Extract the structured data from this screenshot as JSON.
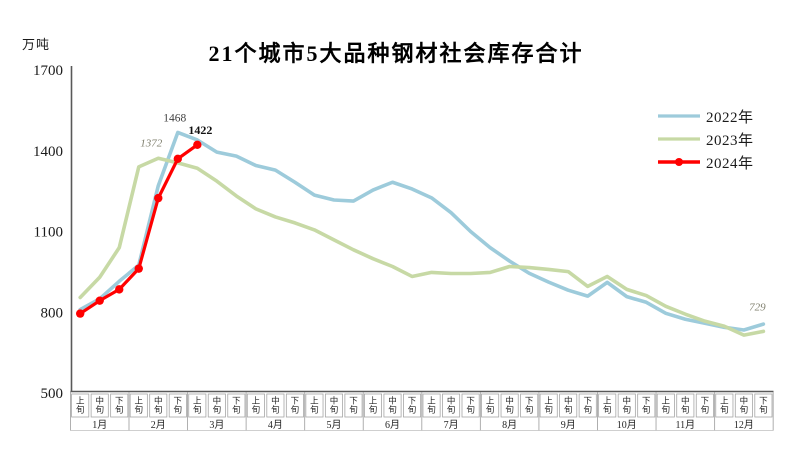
{
  "chart": {
    "title": "21个城市5大品种钢材社会库存合计",
    "unit": "万吨"
  },
  "chart_data": {
    "type": "line",
    "title": "21个城市5大品种钢材社会库存合计",
    "ylabel": "万吨",
    "ylim": [
      500,
      1700
    ],
    "yticks": [
      1700,
      1400,
      1100,
      800,
      500
    ],
    "grid": false,
    "legend_position": "right",
    "months": [
      "1月",
      "2月",
      "3月",
      "4月",
      "5月",
      "6月",
      "7月",
      "8月",
      "9月",
      "10月",
      "11月",
      "12月"
    ],
    "periods_per_month": [
      "上旬",
      "中旬",
      "下旬"
    ],
    "series": [
      {
        "name": "2022年",
        "color": "#9DCBDB",
        "marker": false,
        "values": [
          810,
          850,
          915,
          975,
          1270,
          1468,
          1440,
          1395,
          1380,
          1345,
          1328,
          1283,
          1235,
          1217,
          1213,
          1254,
          1283,
          1258,
          1225,
          1170,
          1100,
          1040,
          990,
          945,
          912,
          882,
          860,
          911,
          858,
          837,
          796,
          774,
          759,
          744,
          734,
          756
        ]
      },
      {
        "name": "2023年",
        "color": "#C7D9A5",
        "marker": false,
        "values": [
          855,
          930,
          1040,
          1340,
          1372,
          1355,
          1335,
          1287,
          1232,
          1184,
          1154,
          1132,
          1106,
          1069,
          1032,
          999,
          970,
          933,
          948,
          944,
          944,
          948,
          970,
          966,
          959,
          951,
          896,
          933,
          885,
          862,
          822,
          793,
          767,
          748,
          715,
          729
        ]
      },
      {
        "name": "2024年",
        "color": "#FF0000",
        "marker": true,
        "values": [
          795,
          843,
          885,
          962,
          1224,
          1370,
          1422
        ]
      }
    ],
    "annotations": [
      {
        "text": "1468",
        "series": 0,
        "point": 5
      },
      {
        "text": "1372",
        "series": 1,
        "point": 4
      },
      {
        "text": "1422",
        "series": 2,
        "point": 6
      },
      {
        "text": "729",
        "series": 1,
        "point": 35
      }
    ]
  }
}
